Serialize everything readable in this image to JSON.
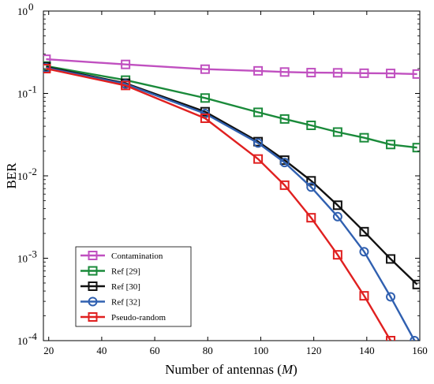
{
  "chart_data": {
    "type": "line",
    "xlabel": "Number of antennas (M)",
    "ylabel": "BER",
    "xlim": [
      18,
      160
    ],
    "ylim": [
      0.0001,
      1
    ],
    "yscale": "log",
    "grid": false,
    "legend_placement": "bottom-left",
    "x_ticks": [
      20,
      40,
      60,
      80,
      100,
      120,
      140,
      160
    ],
    "x_tick_labels": [
      "20",
      "40",
      "60",
      "80",
      "100",
      "120",
      "140",
      "160"
    ],
    "y_ticks": [
      1,
      0.1,
      0.01,
      0.001,
      0.0001
    ],
    "y_tick_labels": [
      {
        "base": "10",
        "exp": "0"
      },
      {
        "base": "10",
        "exp": "-1"
      },
      {
        "base": "10",
        "exp": "-2"
      },
      {
        "base": "10",
        "exp": "-3"
      },
      {
        "base": "10",
        "exp": "-4"
      }
    ],
    "series": [
      {
        "name": "Contamination",
        "color": "#c050c0",
        "marker": "square",
        "points": [
          [
            19,
            0.26
          ],
          [
            49,
            0.225
          ],
          [
            79,
            0.197
          ],
          [
            99,
            0.188
          ],
          [
            109,
            0.182
          ],
          [
            119,
            0.179
          ],
          [
            129,
            0.178
          ],
          [
            139,
            0.176
          ],
          [
            149,
            0.175
          ],
          [
            159,
            0.172
          ]
        ]
      },
      {
        "name": "Ref [29]",
        "color": "#1a8a3a",
        "marker": "square",
        "points": [
          [
            19,
            0.215
          ],
          [
            49,
            0.145
          ],
          [
            79,
            0.088
          ],
          [
            99,
            0.059
          ],
          [
            109,
            0.049
          ],
          [
            119,
            0.041
          ],
          [
            129,
            0.034
          ],
          [
            139,
            0.029
          ],
          [
            149,
            0.024
          ],
          [
            159,
            0.022
          ]
        ]
      },
      {
        "name": "Ref [30]",
        "color": "#111111",
        "marker": "square",
        "points": [
          [
            19,
            0.21
          ],
          [
            49,
            0.133
          ],
          [
            79,
            0.06
          ],
          [
            99,
            0.026
          ],
          [
            109,
            0.0155
          ],
          [
            119,
            0.0087
          ],
          [
            129,
            0.0044
          ],
          [
            139,
            0.0021
          ],
          [
            149,
            0.00098
          ],
          [
            159,
            0.00048
          ]
        ]
      },
      {
        "name": "Ref [32]",
        "color": "#3060b0",
        "marker": "circle",
        "points": [
          [
            19,
            0.205
          ],
          [
            49,
            0.13
          ],
          [
            79,
            0.057
          ],
          [
            99,
            0.025
          ],
          [
            109,
            0.0145
          ],
          [
            119,
            0.0073
          ],
          [
            129,
            0.0032
          ],
          [
            139,
            0.0012
          ],
          [
            149,
            0.00034
          ],
          [
            158,
            0.0001
          ]
        ]
      },
      {
        "name": "Pseudo-random",
        "color": "#e02020",
        "marker": "square",
        "points": [
          [
            19,
            0.2
          ],
          [
            49,
            0.125
          ],
          [
            79,
            0.05
          ],
          [
            99,
            0.016
          ],
          [
            109,
            0.0077
          ],
          [
            119,
            0.0031
          ],
          [
            129,
            0.0011
          ],
          [
            139,
            0.00035
          ],
          [
            149,
            0.0001
          ]
        ]
      }
    ]
  }
}
